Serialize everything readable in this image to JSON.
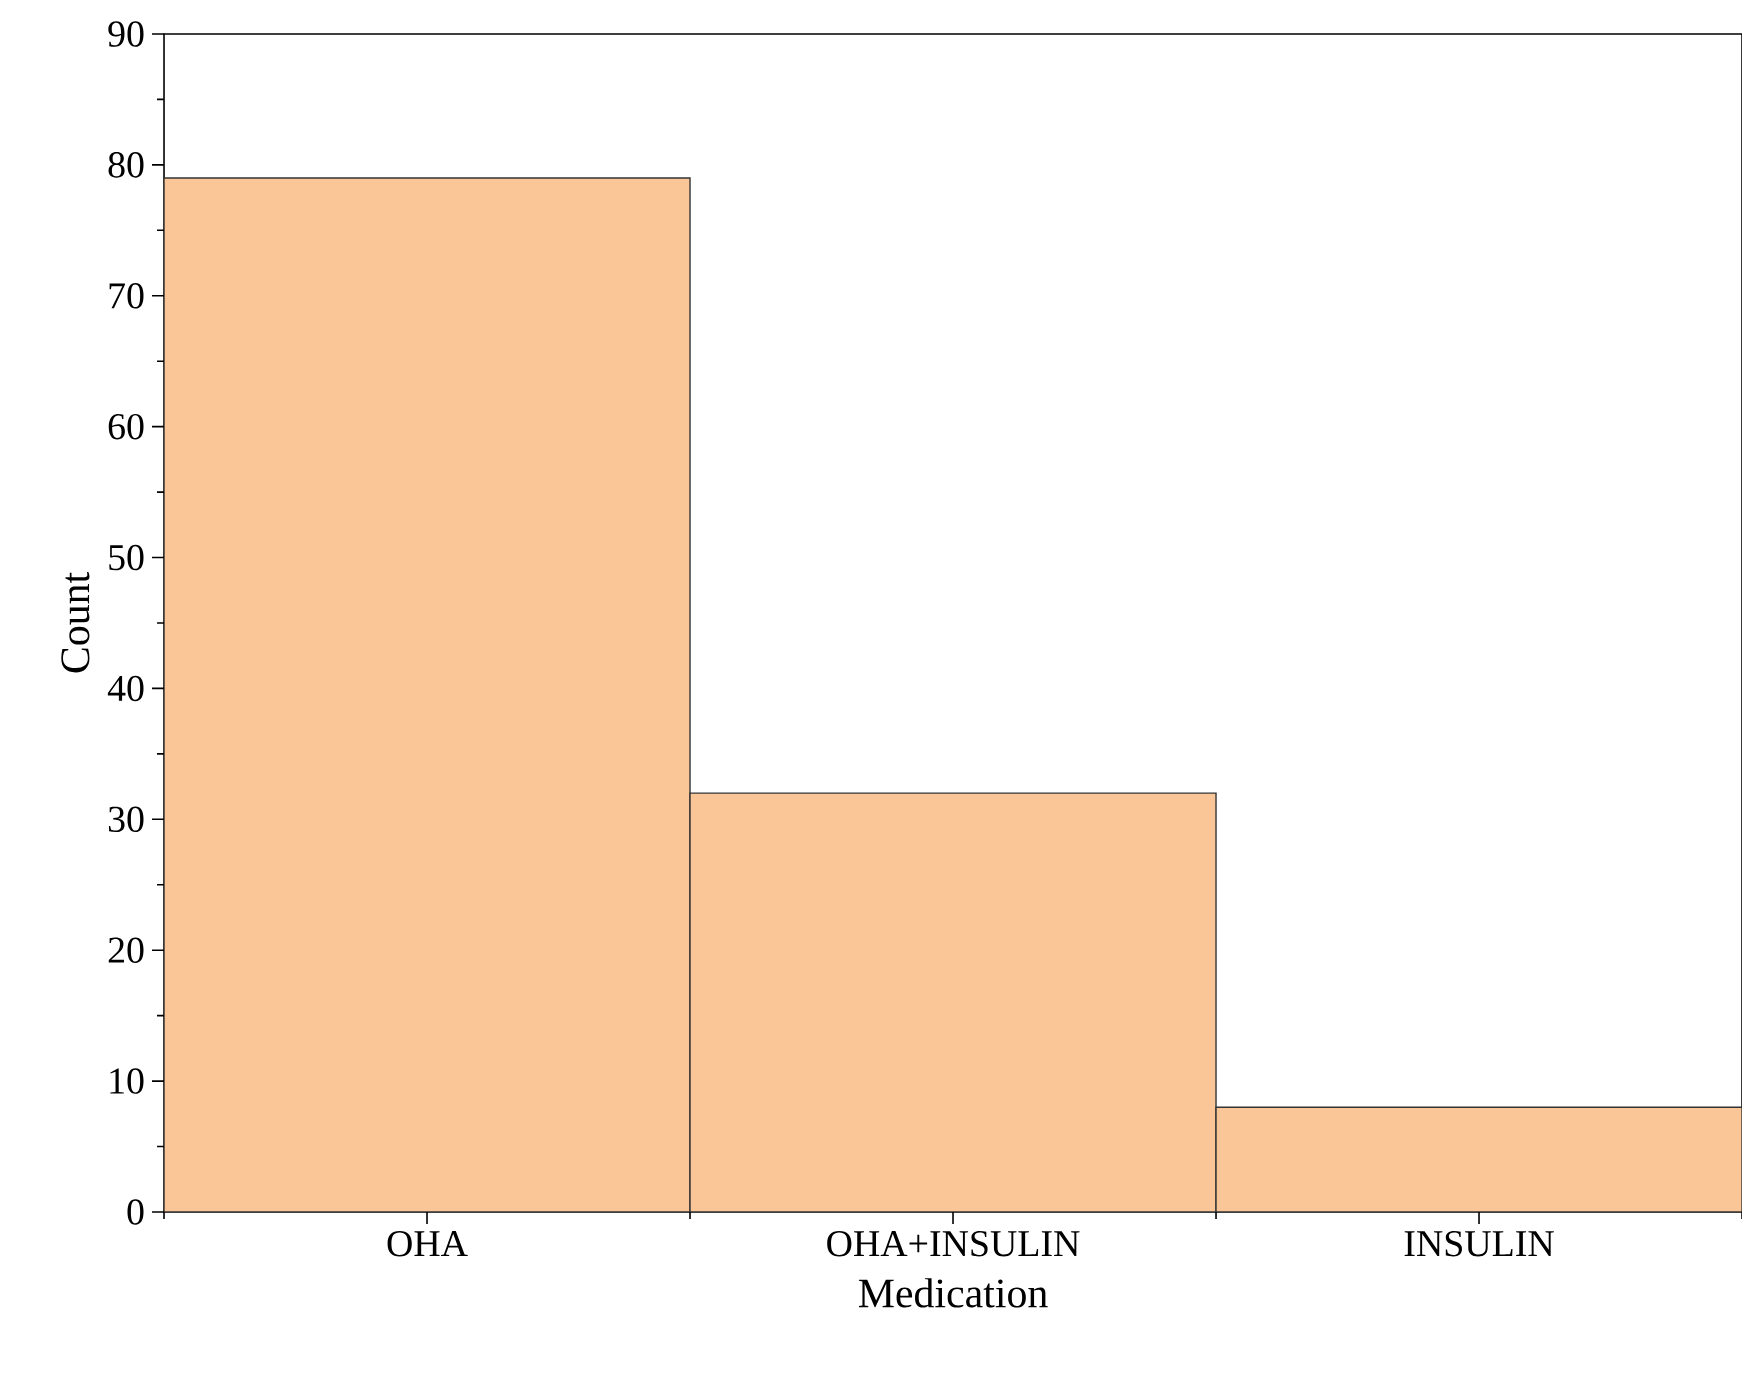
{
  "chart_data": {
    "type": "bar",
    "xlabel": "Medication",
    "ylabel": "Count",
    "categories": [
      "OHA",
      "OHA+INSULIN",
      "INSULIN"
    ],
    "values": [
      79,
      32,
      8
    ],
    "color": "#fbc697",
    "ylim": [
      0,
      90
    ],
    "yticks": [
      0,
      10,
      20,
      30,
      40,
      50,
      60,
      70,
      80,
      90
    ],
    "grid": false
  }
}
